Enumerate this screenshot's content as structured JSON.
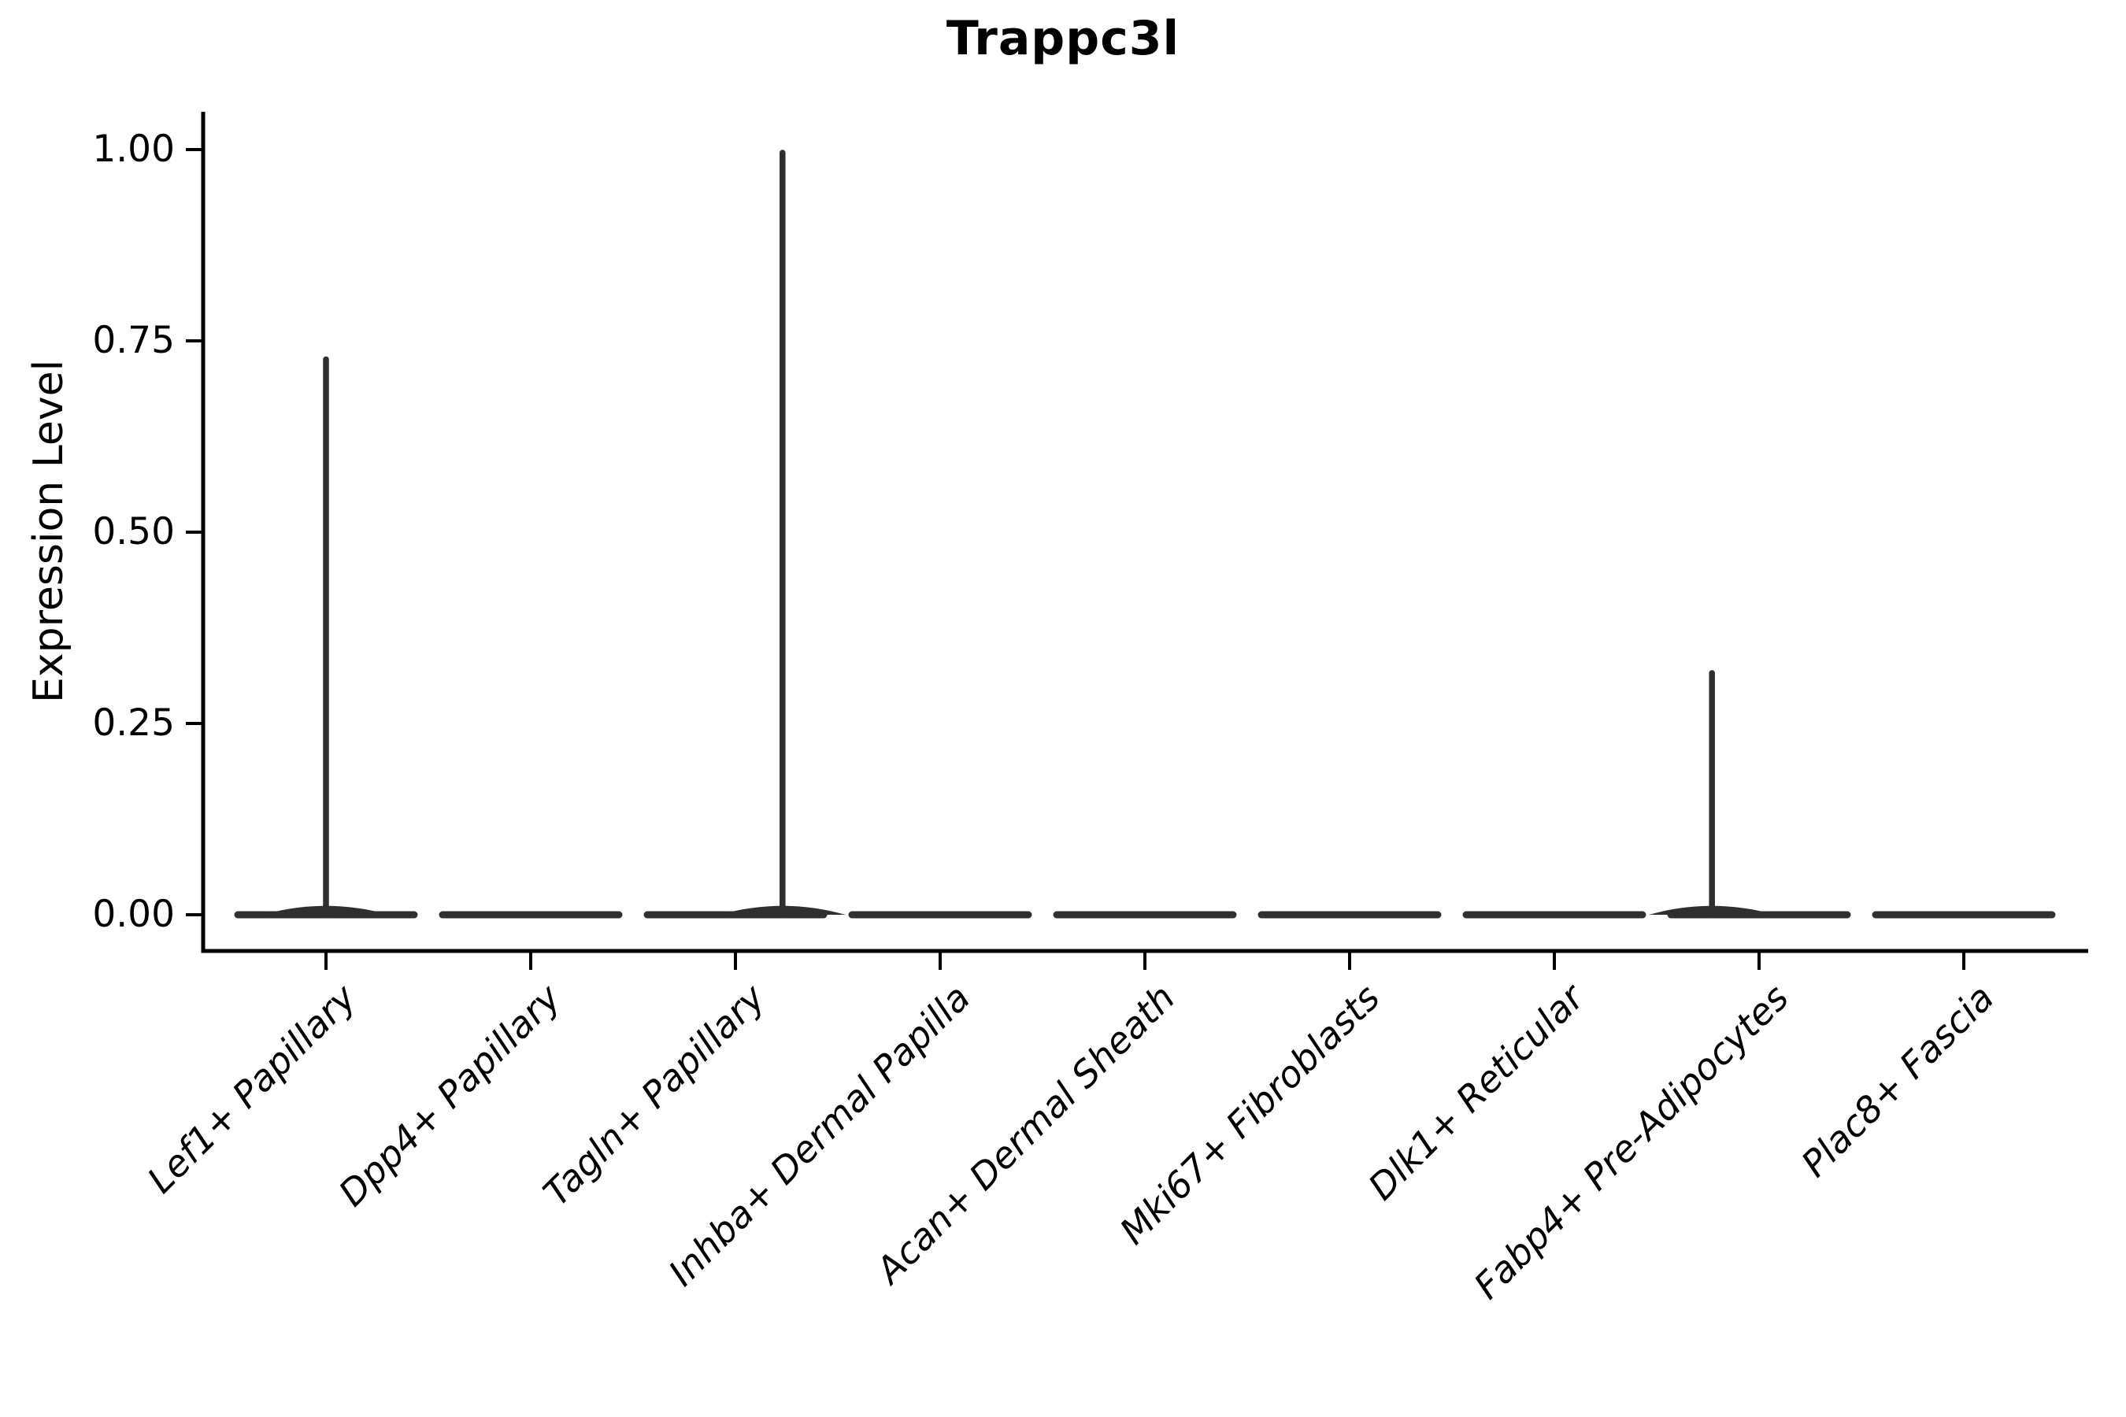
{
  "figure": {
    "background": "#ffffff",
    "text_color": "#000000",
    "axis_color": "#000000",
    "violin_color": "#2f2f2f"
  },
  "chart_data": {
    "type": "violin",
    "title": "Trappc3l",
    "xlabel": "",
    "ylabel": "Expression Level",
    "ylim": [
      0,
      1.0
    ],
    "grid": false,
    "legend": "none",
    "yticks": [
      "0.00",
      "0.25",
      "0.50",
      "0.75",
      "1.00"
    ],
    "ytick_values": [
      0,
      0.25,
      0.5,
      0.75,
      1.0
    ],
    "categories": [
      "Lef1+ Papillary",
      "Dpp4+ Papillary",
      "Tagln+ Papillary",
      "Inhba+ Dermal Papilla",
      "Acan+ Dermal Sheath",
      "Mki67+ Fibroblasts",
      "Dlk1+ Reticular",
      "Fabp4+ Pre-Adipocytes",
      "Plac8+ Fascia"
    ],
    "series": [
      {
        "name": "Lef1+ Papillary",
        "baseline_value": 0,
        "max_value": 0.73,
        "has_spike": true,
        "spike_offset": 0
      },
      {
        "name": "Dpp4+ Papillary",
        "baseline_value": 0,
        "max_value": 0,
        "has_spike": false,
        "spike_offset": 0
      },
      {
        "name": "Tagln+ Papillary",
        "baseline_value": 0,
        "max_value": 1.0,
        "has_spike": true,
        "spike_offset": 0.23
      },
      {
        "name": "Inhba+ Dermal Papilla",
        "baseline_value": 0,
        "max_value": 0,
        "has_spike": false,
        "spike_offset": 0
      },
      {
        "name": "Acan+ Dermal Sheath",
        "baseline_value": 0,
        "max_value": 0,
        "has_spike": false,
        "spike_offset": 0
      },
      {
        "name": "Mki67+ Fibroblasts",
        "baseline_value": 0,
        "max_value": 0,
        "has_spike": false,
        "spike_offset": 0
      },
      {
        "name": "Dlk1+ Reticular",
        "baseline_value": 0,
        "max_value": 0,
        "has_spike": false,
        "spike_offset": 0
      },
      {
        "name": "Fabp4+ Pre-Adipocytes",
        "baseline_value": 0,
        "max_value": 0.32,
        "has_spike": true,
        "spike_offset": -0.23
      },
      {
        "name": "Plac8+ Fascia",
        "baseline_value": 0,
        "max_value": 0,
        "has_spike": false,
        "spike_offset": 0
      }
    ]
  }
}
